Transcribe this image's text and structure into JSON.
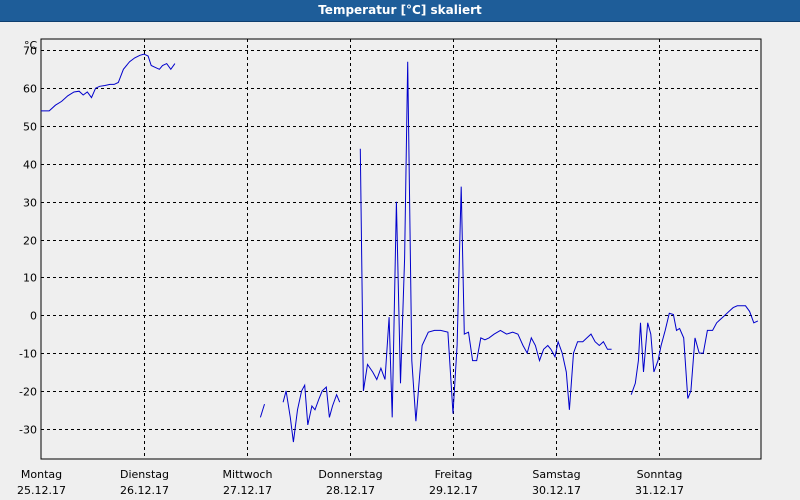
{
  "window": {
    "title": "Temperatur [°C] skaliert"
  },
  "chart_data": {
    "type": "line",
    "title": "Temperatur [°C] skaliert",
    "ylabel": "°C",
    "ylim": [
      -38,
      73
    ],
    "xlim": [
      0,
      7
    ],
    "grid": true,
    "y_ticks": [
      70,
      60,
      50,
      40,
      30,
      20,
      10,
      0,
      -10,
      -20,
      -30
    ],
    "x_ticks": [
      {
        "x": 0,
        "day": "Montag",
        "date": "25.12.17"
      },
      {
        "x": 1,
        "day": "Dienstag",
        "date": "26.12.17"
      },
      {
        "x": 2,
        "day": "Mittwoch",
        "date": "27.12.17"
      },
      {
        "x": 3,
        "day": "Donnerstag",
        "date": "28.12.17"
      },
      {
        "x": 4,
        "day": "Freitag",
        "date": "29.12.17"
      },
      {
        "x": 5,
        "day": "Samstag",
        "date": "30.12.17"
      },
      {
        "x": 6,
        "day": "Sonntag",
        "date": "31.12.17"
      }
    ],
    "line_color": "#0000cc",
    "series": [
      {
        "segments": [
          [
            [
              0.0,
              54
            ],
            [
              0.04,
              54
            ],
            [
              0.08,
              54
            ],
            [
              0.14,
              55.5
            ],
            [
              0.2,
              56.5
            ],
            [
              0.26,
              58
            ],
            [
              0.32,
              59
            ],
            [
              0.37,
              59.2
            ],
            [
              0.41,
              58.2
            ],
            [
              0.45,
              59
            ],
            [
              0.49,
              57.5
            ],
            [
              0.53,
              60
            ],
            [
              0.57,
              60.5
            ],
            [
              0.62,
              60.7
            ],
            [
              0.67,
              61
            ],
            [
              0.71,
              61
            ],
            [
              0.75,
              61.5
            ],
            [
              0.8,
              65
            ],
            [
              0.86,
              67
            ],
            [
              0.91,
              68
            ],
            [
              0.96,
              68.7
            ],
            [
              1.0,
              69
            ],
            [
              1.04,
              68.5
            ],
            [
              1.07,
              66
            ],
            [
              1.11,
              65.5
            ],
            [
              1.15,
              65
            ],
            [
              1.18,
              66
            ],
            [
              1.22,
              66.5
            ],
            [
              1.26,
              65
            ],
            [
              1.3,
              66.5
            ]
          ],
          [
            [
              2.13,
              -27
            ],
            [
              2.17,
              -23.5
            ]
          ],
          [
            [
              2.35,
              -23
            ],
            [
              2.38,
              -20
            ],
            [
              2.42,
              -27
            ],
            [
              2.45,
              -33.5
            ],
            [
              2.49,
              -25
            ],
            [
              2.53,
              -20
            ],
            [
              2.56,
              -18.5
            ],
            [
              2.59,
              -29
            ],
            [
              2.63,
              -24
            ],
            [
              2.66,
              -25
            ],
            [
              2.7,
              -22
            ],
            [
              2.73,
              -20
            ],
            [
              2.77,
              -19
            ],
            [
              2.8,
              -27
            ],
            [
              2.83,
              -24
            ],
            [
              2.87,
              -21
            ],
            [
              2.9,
              -23
            ]
          ],
          [
            [
              3.1,
              44
            ],
            [
              3.13,
              -20
            ],
            [
              3.17,
              -13
            ],
            [
              3.22,
              -15
            ],
            [
              3.26,
              -17
            ],
            [
              3.3,
              -14
            ],
            [
              3.34,
              -17
            ],
            [
              3.38,
              -0.5
            ],
            [
              3.41,
              -27
            ],
            [
              3.45,
              30
            ],
            [
              3.49,
              -18
            ],
            [
              3.53,
              15
            ],
            [
              3.56,
              67
            ],
            [
              3.6,
              -12
            ],
            [
              3.64,
              -28
            ],
            [
              3.7,
              -8
            ],
            [
              3.76,
              -4.5
            ],
            [
              3.82,
              -4
            ],
            [
              3.88,
              -4
            ],
            [
              3.95,
              -4.5
            ],
            [
              4.0,
              -26
            ],
            [
              4.04,
              -8
            ],
            [
              4.08,
              34
            ],
            [
              4.11,
              -5
            ],
            [
              4.15,
              -4.5
            ],
            [
              4.19,
              -12
            ],
            [
              4.23,
              -12
            ],
            [
              4.27,
              -6
            ],
            [
              4.31,
              -6.5
            ],
            [
              4.35,
              -6
            ],
            [
              4.4,
              -5
            ],
            [
              4.46,
              -4
            ],
            [
              4.52,
              -5
            ],
            [
              4.58,
              -4.5
            ],
            [
              4.63,
              -5
            ],
            [
              4.68,
              -8
            ],
            [
              4.72,
              -10
            ],
            [
              4.76,
              -6
            ],
            [
              4.8,
              -8
            ],
            [
              4.84,
              -12
            ],
            [
              4.88,
              -9
            ],
            [
              4.92,
              -8
            ],
            [
              4.95,
              -9
            ],
            [
              4.99,
              -11
            ],
            [
              5.02,
              -7
            ],
            [
              5.06,
              -10
            ],
            [
              5.1,
              -15
            ],
            [
              5.13,
              -25
            ],
            [
              5.17,
              -10
            ],
            [
              5.21,
              -7
            ],
            [
              5.26,
              -7
            ],
            [
              5.3,
              -6
            ],
            [
              5.34,
              -5
            ],
            [
              5.38,
              -7
            ],
            [
              5.42,
              -8
            ],
            [
              5.46,
              -7
            ],
            [
              5.5,
              -9
            ],
            [
              5.54,
              -9
            ]
          ],
          [
            [
              5.73,
              -21
            ],
            [
              5.77,
              -18
            ],
            [
              5.8,
              -12
            ],
            [
              5.82,
              -2
            ],
            [
              5.85,
              -15
            ],
            [
              5.89,
              -2
            ],
            [
              5.92,
              -5
            ],
            [
              5.95,
              -15
            ],
            [
              5.99,
              -12
            ],
            [
              6.02,
              -8
            ],
            [
              6.06,
              -4
            ],
            [
              6.1,
              0.5
            ],
            [
              6.14,
              0.2
            ],
            [
              6.17,
              -4
            ],
            [
              6.2,
              -3.5
            ],
            [
              6.24,
              -6
            ],
            [
              6.28,
              -22
            ],
            [
              6.31,
              -20
            ],
            [
              6.35,
              -6
            ],
            [
              6.39,
              -10
            ],
            [
              6.43,
              -10
            ],
            [
              6.47,
              -4
            ],
            [
              6.52,
              -4
            ],
            [
              6.56,
              -2
            ],
            [
              6.6,
              -1
            ],
            [
              6.64,
              0
            ],
            [
              6.68,
              1
            ],
            [
              6.72,
              2
            ],
            [
              6.76,
              2.5
            ],
            [
              6.8,
              2.5
            ],
            [
              6.84,
              2.5
            ],
            [
              6.88,
              1
            ],
            [
              6.92,
              -2
            ],
            [
              6.96,
              -1.5
            ]
          ]
        ]
      }
    ]
  }
}
